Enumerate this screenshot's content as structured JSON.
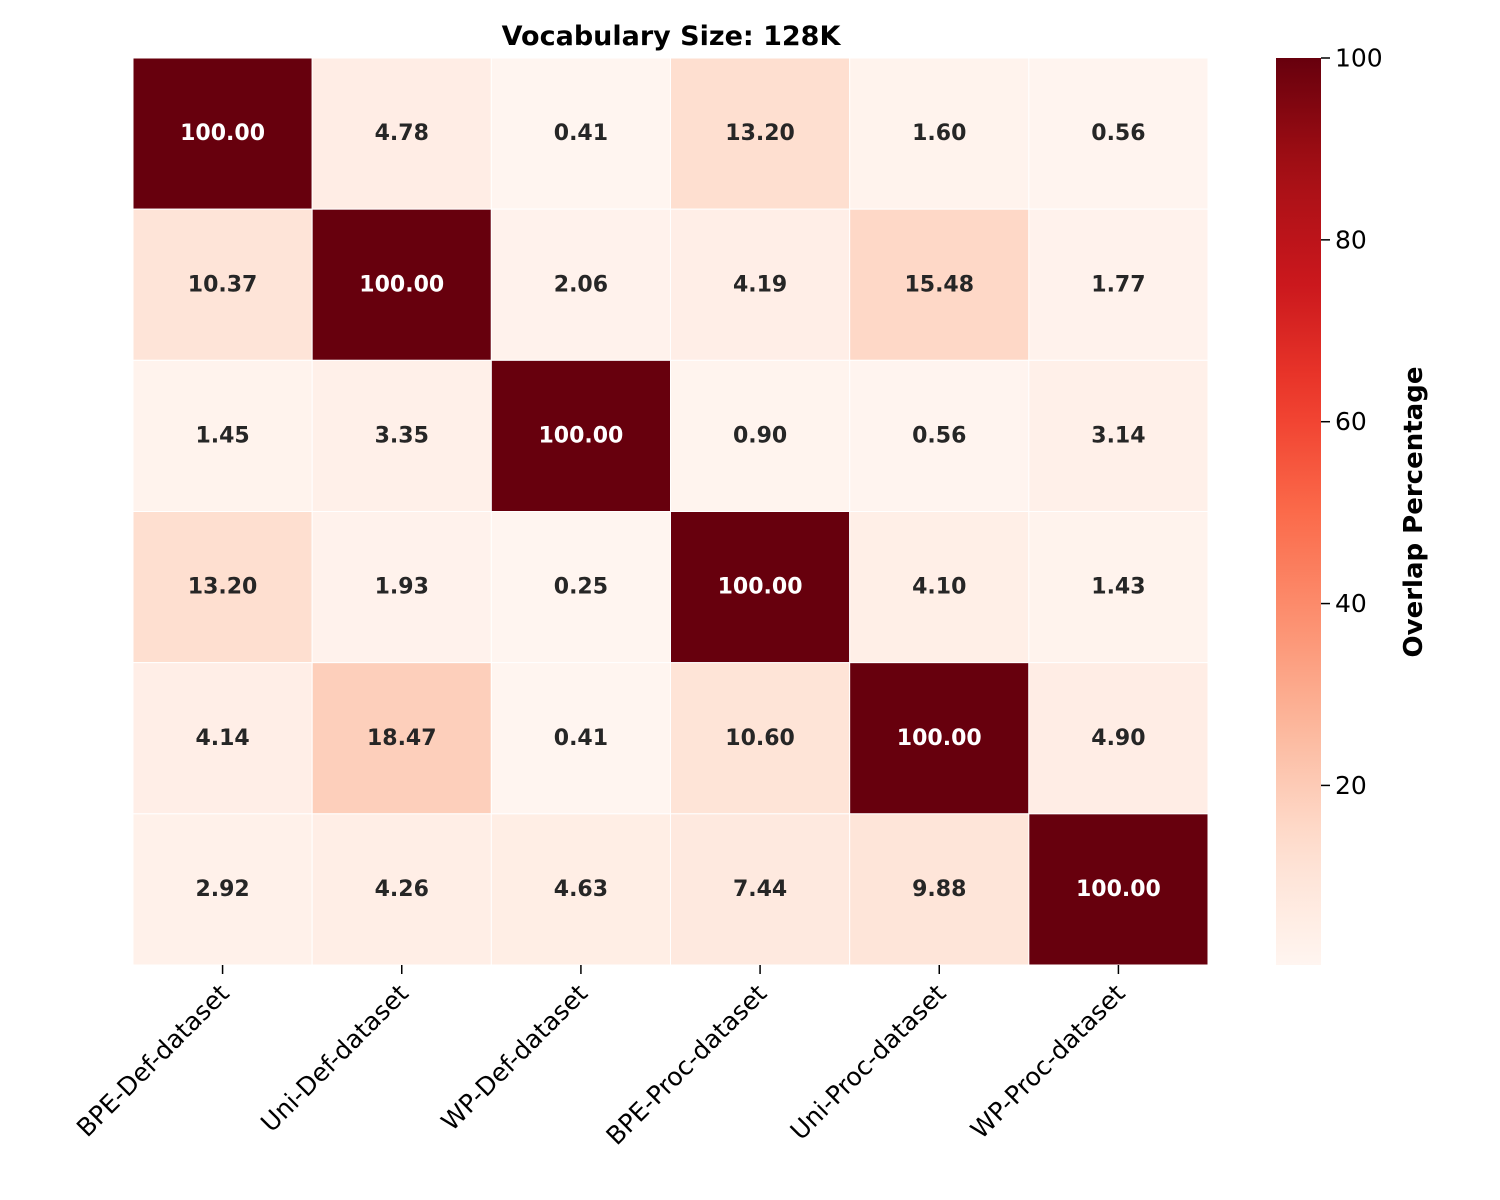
{
  "chart_data": {
    "type": "heatmap",
    "title": "Vocabulary Size: 128K",
    "x_labels": [
      "BPE-Def-dataset",
      "Uni-Def-dataset",
      "WP-Def-dataset",
      "BPE-Proc-dataset",
      "Uni-Proc-dataset",
      "WP-Proc-dataset"
    ],
    "y_labels": [],
    "values": [
      [
        100.0,
        4.78,
        0.41,
        13.2,
        1.6,
        0.56
      ],
      [
        10.37,
        100.0,
        2.06,
        4.19,
        15.48,
        1.77
      ],
      [
        1.45,
        3.35,
        100.0,
        0.9,
        0.56,
        3.14
      ],
      [
        13.2,
        1.93,
        0.25,
        100.0,
        4.1,
        1.43
      ],
      [
        4.14,
        18.47,
        0.41,
        10.6,
        100.0,
        4.9
      ],
      [
        2.92,
        4.26,
        4.63,
        7.44,
        9.88,
        100.0
      ]
    ],
    "value_labels": [
      [
        "100.00",
        "4.78",
        "0.41",
        "13.20",
        "1.60",
        "0.56"
      ],
      [
        "10.37",
        "100.00",
        "2.06",
        "4.19",
        "15.48",
        "1.77"
      ],
      [
        "1.45",
        "3.35",
        "100.00",
        "0.90",
        "0.56",
        "3.14"
      ],
      [
        "13.20",
        "1.93",
        "0.25",
        "100.00",
        "4.10",
        "1.43"
      ],
      [
        "4.14",
        "18.47",
        "0.41",
        "10.60",
        "100.00",
        "4.90"
      ],
      [
        "2.92",
        "4.26",
        "4.63",
        "7.44",
        "9.88",
        "100.00"
      ]
    ],
    "colormap": "Reds",
    "vmin": 0.25,
    "vmax": 100,
    "colorbar": {
      "label": "Overlap Percentage",
      "ticks": [
        20,
        40,
        60,
        80,
        100
      ],
      "tick_labels": [
        "20",
        "40",
        "60",
        "80",
        "100"
      ]
    }
  }
}
